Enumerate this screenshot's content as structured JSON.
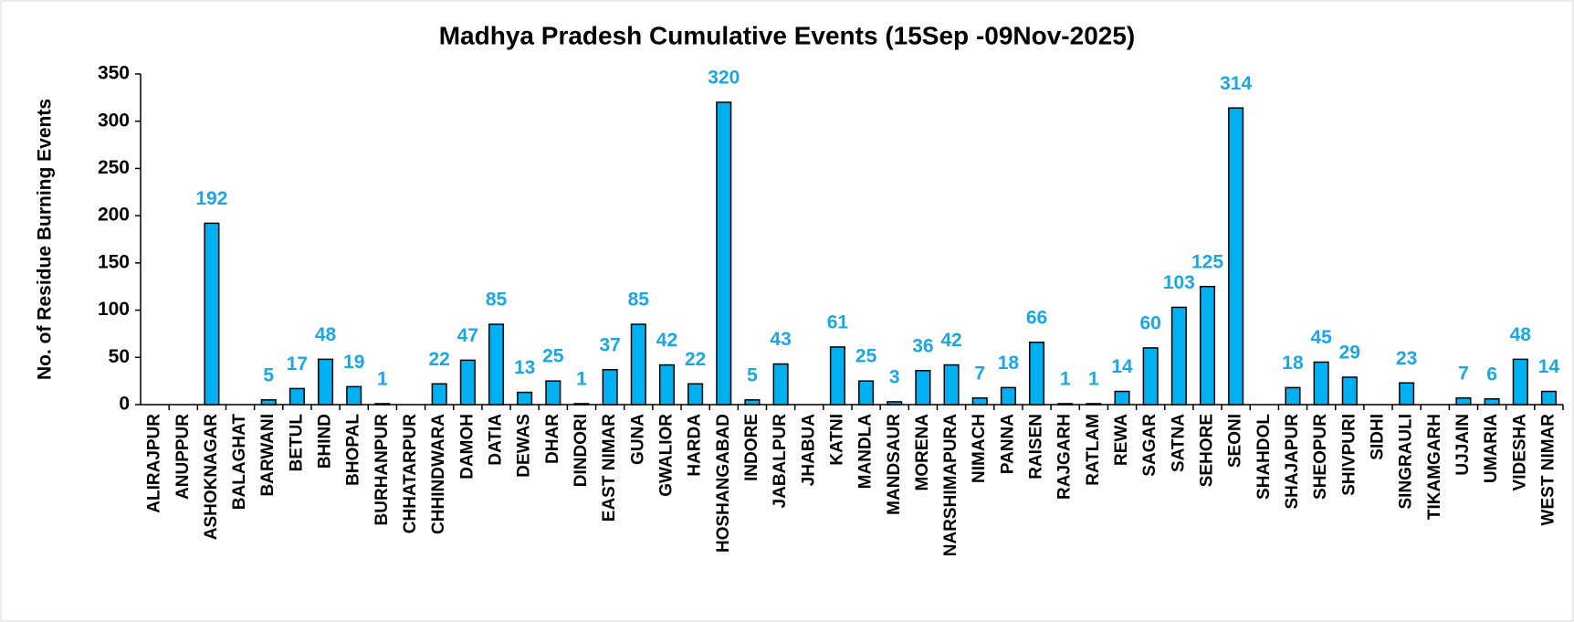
{
  "chart_data": {
    "type": "bar",
    "title": "Madhya Pradesh Cumulative Events (15Sep -09Nov-2025)",
    "y_label": "No. of Residue Burning Events",
    "categories": [
      "ALIRAJPUR",
      "ANUPPUR",
      "ASHOKNAGAR",
      "BALAGHAT",
      "BARWANI",
      "BETUL",
      "BHIND",
      "BHOPAL",
      "BURHANPUR",
      "CHHATARPUR",
      "CHHINDWARA",
      "DAMOH",
      "DATIA",
      "DEWAS",
      "DHAR",
      "DINDORI",
      "EAST NIMAR",
      "GUNA",
      "GWALIOR",
      "HARDA",
      "HOSHANGABAD",
      "INDORE",
      "JABALPUR",
      "JHABUA",
      "KATNI",
      "MANDLA",
      "MANDSAUR",
      "MORENA",
      "NARSHIMAPURA",
      "NIMACH",
      "PANNA",
      "RAISEN",
      "RAJGARH",
      "RATLAM",
      "REWA",
      "SAGAR",
      "SATNA",
      "SEHORE",
      "SEONI",
      "SHAHDOL",
      "SHAJAPUR",
      "SHEOPUR",
      "SHIVPURI",
      "SIDHI",
      "SINGRAULI",
      "TIKAMGARH",
      "UJJAIN",
      "UMARIA",
      "VIDESHA",
      "WEST NIMAR"
    ],
    "values": [
      0,
      0,
      192,
      0,
      5,
      17,
      48,
      19,
      1,
      0,
      22,
      47,
      85,
      13,
      25,
      1,
      37,
      85,
      42,
      22,
      320,
      5,
      43,
      0,
      61,
      25,
      3,
      36,
      42,
      7,
      18,
      66,
      1,
      1,
      14,
      60,
      103,
      125,
      314,
      0,
      18,
      45,
      29,
      0,
      23,
      0,
      7,
      6,
      48,
      14
    ],
    "color": "#00b0f0",
    "label_color": "#1aa7e8",
    "ylim": [
      0,
      350
    ],
    "yticks": [
      0,
      50,
      100,
      150,
      200,
      250,
      300,
      350
    ],
    "grid": false
  }
}
